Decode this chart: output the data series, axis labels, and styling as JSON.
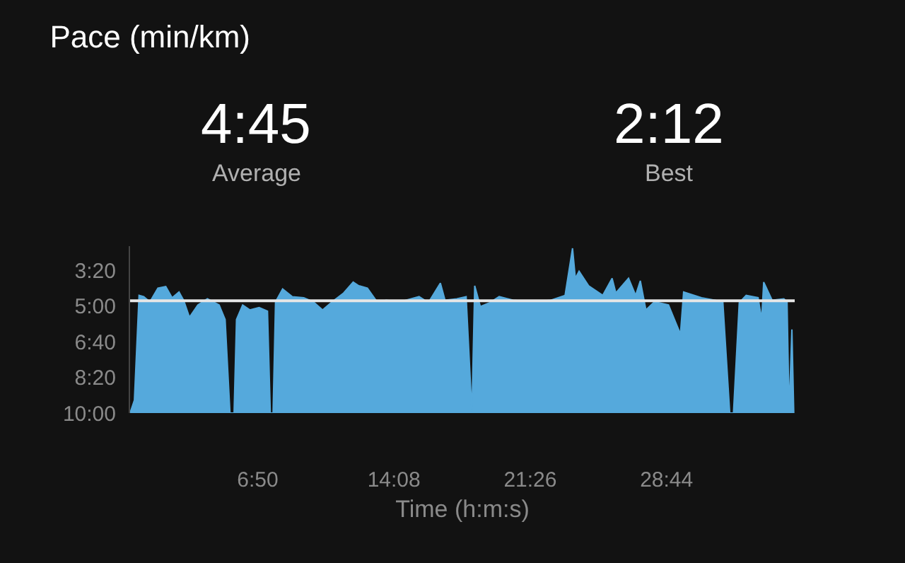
{
  "chart_data": {
    "type": "area",
    "title": "Pace (min/km)",
    "xlabel": "Time (h:m:s)",
    "annotations": [
      "4:45",
      "Average",
      "2:12",
      "Best"
    ],
    "x": [
      0,
      0.23,
      0.48,
      0.73,
      1.06,
      1.49,
      1.91,
      2.25,
      2.62,
      2.87,
      3.18,
      3.63,
      4.14,
      4.77,
      5.09,
      5.35,
      5.57,
      5.7,
      6.03,
      6.41,
      6.91,
      7.36,
      7.51,
      7.66,
      7.79,
      8.17,
      8.68,
      9.3,
      9.81,
      10.31,
      10.82,
      11.44,
      11.95,
      12.25,
      12.71,
      13.26,
      13.71,
      14.47,
      15.48,
      15.98,
      16.62,
      16.87,
      17.5,
      18.0,
      18.31,
      18.46,
      18.76,
      19.27,
      19.77,
      20.52,
      21.54,
      22.54,
      23.3,
      23.7,
      23.85,
      24.05,
      24.56,
      25.32,
      25.82,
      26.02,
      26.7,
      27.08,
      27.33,
      27.63,
      28.09,
      28.84,
      29.48,
      29.65,
      30.61,
      31.75,
      32.12,
      32.32,
      32.63,
      33.0,
      33.64,
      33.83,
      33.94,
      34.39,
      35.02,
      35.19,
      35.3,
      35.45,
      35.55
    ],
    "series": [
      {
        "color": "#55a9dc",
        "values": [
          10,
          9.4,
          4.5,
          4.56,
          4.8,
          4.16,
          4.09,
          4.61,
          4.34,
          4.73,
          5.52,
          4.95,
          4.66,
          4.95,
          5.63,
          10,
          10,
          5.63,
          4.95,
          5.18,
          5.07,
          5.24,
          10,
          10,
          4.8,
          4.2,
          4.56,
          4.61,
          4.8,
          5.18,
          4.8,
          4.39,
          3.88,
          4.05,
          4.16,
          4.84,
          4.73,
          4.8,
          4.56,
          4.84,
          3.93,
          4.73,
          4.66,
          4.56,
          10,
          4.05,
          5.02,
          4.84,
          4.56,
          4.73,
          4.8,
          4.73,
          4.5,
          2.3,
          3.7,
          3.37,
          4.05,
          4.5,
          3.7,
          4.39,
          3.7,
          4.5,
          3.82,
          5.18,
          4.8,
          4.95,
          6.31,
          4.34,
          4.61,
          4.8,
          10,
          10,
          4.84,
          4.5,
          4.61,
          5.63,
          3.88,
          4.73,
          4.66,
          4.8,
          10,
          6.09,
          10
        ]
      }
    ],
    "xlim": [
      0,
      35.6
    ],
    "xticks": [
      {
        "value": 6.833,
        "label": "6:50"
      },
      {
        "value": 14.133,
        "label": "14:08"
      },
      {
        "value": 21.433,
        "label": "21:26"
      },
      {
        "value": 28.733,
        "label": "28:44"
      }
    ],
    "ylim": [
      10,
      2.2
    ],
    "yticks": [
      {
        "value": 3.333,
        "label": "3:20"
      },
      {
        "value": 5,
        "label": "5:00"
      },
      {
        "value": 6.667,
        "label": "6:40"
      },
      {
        "value": 8.333,
        "label": "8:20"
      },
      {
        "value": 10,
        "label": "10:00"
      }
    ],
    "ref_lines": [
      {
        "axis": "y",
        "value": 4.75,
        "color": "#e6e6e6"
      }
    ],
    "grid": false
  }
}
